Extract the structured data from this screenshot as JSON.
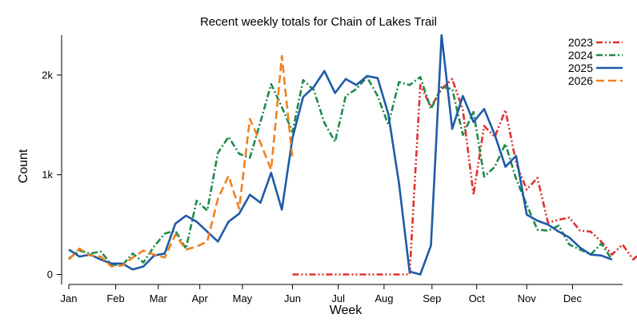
{
  "chart_data": {
    "type": "line",
    "title": "Recent weekly totals for Chain of Lakes Trail",
    "xlabel": "Week",
    "ylabel": "Count",
    "x_tick_labels": [
      "Jan",
      "Feb",
      "Mar",
      "Apr",
      "May",
      "Jun",
      "Jul",
      "Aug",
      "Sep",
      "Oct",
      "Nov",
      "Dec"
    ],
    "x_tick_weeks": [
      1,
      5.4,
      9.4,
      13.3,
      17.3,
      22,
      26.3,
      30.6,
      35.1,
      39.3,
      44,
      48.3
    ],
    "xlim": [
      1,
      53
    ],
    "y_ticks": [
      0,
      1000,
      2000
    ],
    "y_tick_labels": [
      "0",
      "1k",
      "2k"
    ],
    "ylim": [
      -100,
      2400
    ],
    "grid": false,
    "legend_position": "top-right",
    "series": [
      {
        "name": "2023",
        "color": "#e03030",
        "dash": "dash-dot-dot",
        "start_week": 22,
        "values": [
          0,
          0,
          0,
          0,
          0,
          0,
          0,
          0,
          0,
          0,
          0,
          0,
          1900,
          1680,
          1860,
          1960,
          1650,
          800,
          1490,
          1380,
          1650,
          1120,
          850,
          970,
          520,
          550,
          570,
          440,
          430,
          330,
          200,
          300,
          150,
          250
        ]
      },
      {
        "name": "2024",
        "color": "#1f8b4c",
        "dash": "dash-dot",
        "start_week": 1,
        "values": [
          160,
          240,
          210,
          230,
          100,
          90,
          210,
          120,
          280,
          410,
          440,
          260,
          740,
          640,
          1220,
          1380,
          1210,
          1170,
          1530,
          1910,
          1680,
          1430,
          1950,
          1850,
          1520,
          1330,
          1790,
          1860,
          1980,
          1790,
          1500,
          1930,
          1900,
          1980,
          1660,
          1880,
          1860,
          1400,
          1630,
          980,
          1080,
          1310,
          960,
          700,
          450,
          440,
          490,
          300,
          250,
          200,
          310,
          150
        ]
      },
      {
        "name": "2025",
        "color": "#1f5aa8",
        "dash": "solid",
        "start_week": 1,
        "values": [
          250,
          180,
          200,
          150,
          110,
          110,
          50,
          80,
          190,
          210,
          510,
          590,
          530,
          430,
          330,
          530,
          610,
          800,
          720,
          1020,
          650,
          1370,
          1780,
          1880,
          2040,
          1820,
          1960,
          1900,
          1990,
          1970,
          1610,
          920,
          30,
          0,
          290,
          2400,
          1460,
          1790,
          1530,
          1660,
          1400,
          1080,
          1190,
          600,
          540,
          500,
          430,
          370,
          270,
          200,
          190,
          150
        ]
      },
      {
        "name": "2026",
        "color": "#f08020",
        "dash": "dashed",
        "start_week": 1,
        "values": [
          150,
          260,
          190,
          180,
          80,
          90,
          170,
          240,
          200,
          170,
          400,
          250,
          280,
          330,
          760,
          990,
          660,
          1560,
          1320,
          1050,
          2190,
          1160
        ]
      }
    ]
  }
}
